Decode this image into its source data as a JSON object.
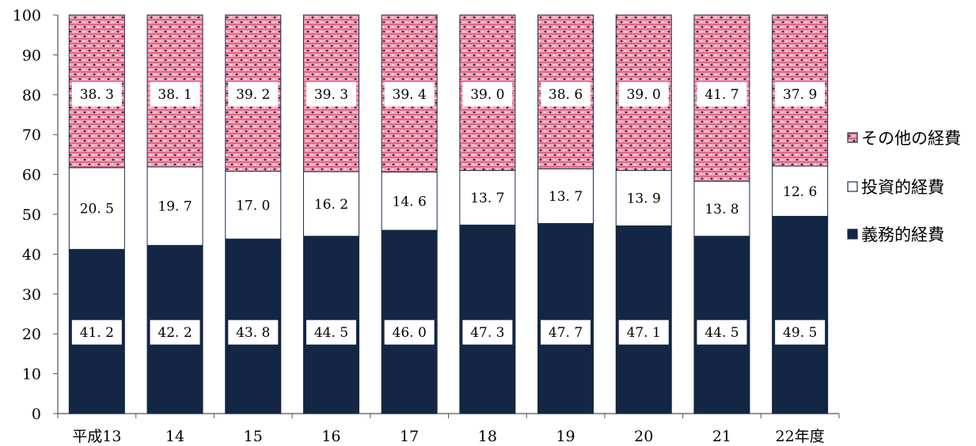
{
  "chart_data": {
    "type": "bar",
    "stacked": true,
    "categories": [
      "平成13",
      "14",
      "15",
      "16",
      "17",
      "18",
      "19",
      "20",
      "21",
      "22年度"
    ],
    "series": [
      {
        "name": "義務的経費",
        "values": [
          41.2,
          42.2,
          43.8,
          44.5,
          46.0,
          47.3,
          47.7,
          47.1,
          44.5,
          49.5
        ],
        "color": "#132644"
      },
      {
        "name": "投資的経費",
        "values": [
          20.5,
          19.7,
          17.0,
          16.2,
          14.6,
          13.7,
          13.7,
          13.9,
          13.8,
          12.6
        ],
        "color": "#ffffff"
      },
      {
        "name": "その他の経費",
        "values": [
          38.3,
          38.1,
          39.2,
          39.3,
          39.4,
          39.0,
          38.6,
          39.0,
          41.7,
          37.9
        ],
        "color": "#f3a6b8"
      }
    ],
    "value_labels": {
      "義務的経費": [
        "41.2",
        "42.2",
        "43.8",
        "44.5",
        "46.0",
        "47.3",
        "47.7",
        "47.1",
        "44.5",
        "49.5"
      ],
      "投資的経費": [
        "20.5",
        "19.7",
        "17.0",
        "16.2",
        "14.6",
        "13.7",
        "13.7",
        "13.9",
        "13.8",
        "12.6"
      ],
      "その他の経費": [
        "38.3",
        "38.1",
        "39.2",
        "39.3",
        "39.4",
        "39.0",
        "38.6",
        "39.0",
        "41.7",
        "37.9"
      ]
    },
    "yticks": [
      "0",
      "10",
      "20",
      "30",
      "40",
      "50",
      "60",
      "70",
      "80",
      "90",
      "100"
    ],
    "ylim": [
      0,
      100
    ],
    "grid": false,
    "legend": {
      "position": "right",
      "items": [
        "その他の経費",
        "投資的経費",
        "義務的経費"
      ]
    },
    "title": "",
    "xlabel": "",
    "ylabel": ""
  }
}
